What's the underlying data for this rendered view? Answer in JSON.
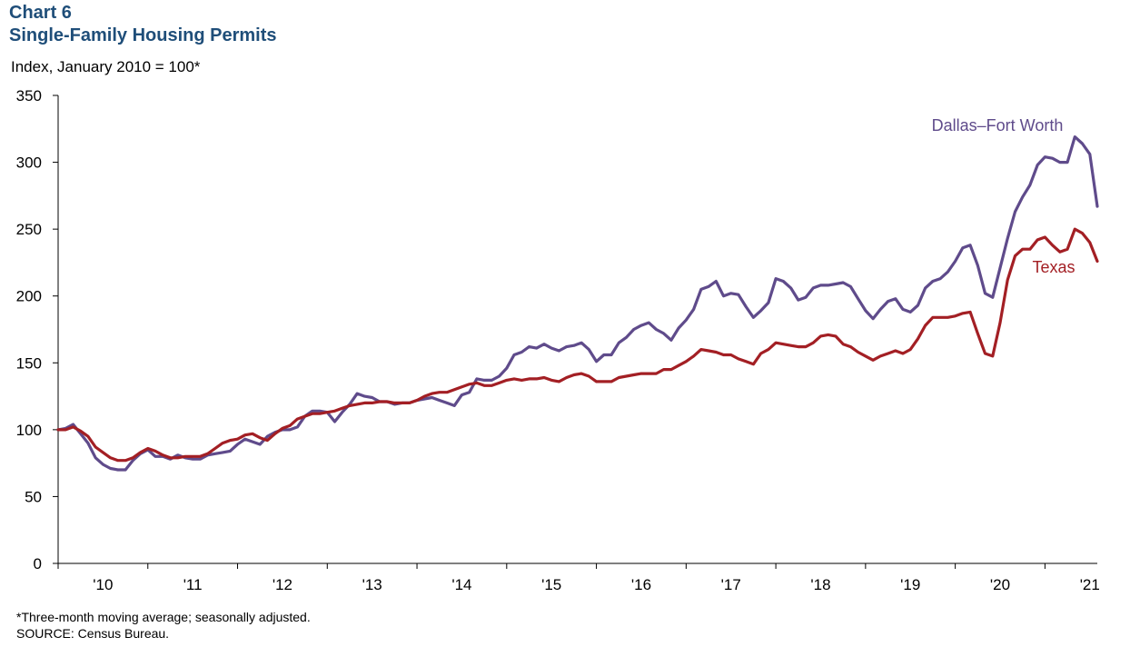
{
  "header": {
    "chart_number": "Chart 6",
    "title": "Single-Family Housing Permits",
    "ylabel": "Index, January 2010 = 100*"
  },
  "footnotes": {
    "note": "*Three-month moving average; seasonally adjusted.",
    "source": "SOURCE:  Census Bureau."
  },
  "colors": {
    "dfw": "#5f4b8b",
    "texas": "#a31f24",
    "axis": "#000000"
  },
  "chart_data": {
    "type": "line",
    "title": "Single-Family Housing Permits",
    "ylabel": "Index, January 2010 = 100*",
    "xlabel": "",
    "x_start": "2010-01",
    "x_end": "2021-07",
    "x_tick_labels": [
      "'10",
      "'11",
      "'12",
      "'13",
      "'14",
      "'15",
      "'16",
      "'17",
      "'18",
      "'19",
      "'20",
      "'21"
    ],
    "ylim": [
      0,
      350
    ],
    "y_ticks": [
      0,
      50,
      100,
      150,
      200,
      250,
      300,
      350
    ],
    "grid": false,
    "series": [
      {
        "name": "Dallas–Fort Worth",
        "color": "#5f4b8b",
        "points": [
          [
            "2010-01",
            100
          ],
          [
            "2010-02",
            101
          ],
          [
            "2010-03",
            104
          ],
          [
            "2010-04",
            97
          ],
          [
            "2010-05",
            90
          ],
          [
            "2010-06",
            79
          ],
          [
            "2010-07",
            74
          ],
          [
            "2010-08",
            71
          ],
          [
            "2010-09",
            70
          ],
          [
            "2010-10",
            70
          ],
          [
            "2010-11",
            77
          ],
          [
            "2010-12",
            82
          ],
          [
            "2011-01",
            85
          ],
          [
            "2011-02",
            80
          ],
          [
            "2011-03",
            80
          ],
          [
            "2011-04",
            78
          ],
          [
            "2011-05",
            81
          ],
          [
            "2011-06",
            79
          ],
          [
            "2011-07",
            78
          ],
          [
            "2011-08",
            78
          ],
          [
            "2011-09",
            81
          ],
          [
            "2011-10",
            82
          ],
          [
            "2011-11",
            83
          ],
          [
            "2011-12",
            84
          ],
          [
            "2012-01",
            89
          ],
          [
            "2012-02",
            93
          ],
          [
            "2012-03",
            91
          ],
          [
            "2012-04",
            89
          ],
          [
            "2012-05",
            95
          ],
          [
            "2012-06",
            98
          ],
          [
            "2012-07",
            100
          ],
          [
            "2012-08",
            100
          ],
          [
            "2012-09",
            102
          ],
          [
            "2012-10",
            110
          ],
          [
            "2012-11",
            114
          ],
          [
            "2012-12",
            114
          ],
          [
            "2013-01",
            113
          ],
          [
            "2013-02",
            106
          ],
          [
            "2013-03",
            113
          ],
          [
            "2013-04",
            119
          ],
          [
            "2013-05",
            127
          ],
          [
            "2013-06",
            125
          ],
          [
            "2013-07",
            124
          ],
          [
            "2013-08",
            121
          ],
          [
            "2013-09",
            121
          ],
          [
            "2013-10",
            119
          ],
          [
            "2013-11",
            120
          ],
          [
            "2013-12",
            120
          ],
          [
            "2014-01",
            122
          ],
          [
            "2014-02",
            123
          ],
          [
            "2014-03",
            124
          ],
          [
            "2014-04",
            122
          ],
          [
            "2014-05",
            120
          ],
          [
            "2014-06",
            118
          ],
          [
            "2014-07",
            126
          ],
          [
            "2014-08",
            128
          ],
          [
            "2014-09",
            138
          ],
          [
            "2014-10",
            137
          ],
          [
            "2014-11",
            137
          ],
          [
            "2014-12",
            140
          ],
          [
            "2015-01",
            146
          ],
          [
            "2015-02",
            156
          ],
          [
            "2015-03",
            158
          ],
          [
            "2015-04",
            162
          ],
          [
            "2015-05",
            161
          ],
          [
            "2015-06",
            164
          ],
          [
            "2015-07",
            161
          ],
          [
            "2015-08",
            159
          ],
          [
            "2015-09",
            162
          ],
          [
            "2015-10",
            163
          ],
          [
            "2015-11",
            165
          ],
          [
            "2015-12",
            160
          ],
          [
            "2016-01",
            151
          ],
          [
            "2016-02",
            156
          ],
          [
            "2016-03",
            156
          ],
          [
            "2016-04",
            165
          ],
          [
            "2016-05",
            169
          ],
          [
            "2016-06",
            175
          ],
          [
            "2016-07",
            178
          ],
          [
            "2016-08",
            180
          ],
          [
            "2016-09",
            175
          ],
          [
            "2016-10",
            172
          ],
          [
            "2016-11",
            167
          ],
          [
            "2016-12",
            176
          ],
          [
            "2017-01",
            182
          ],
          [
            "2017-02",
            190
          ],
          [
            "2017-03",
            205
          ],
          [
            "2017-04",
            207
          ],
          [
            "2017-05",
            211
          ],
          [
            "2017-06",
            200
          ],
          [
            "2017-07",
            202
          ],
          [
            "2017-08",
            201
          ],
          [
            "2017-09",
            192
          ],
          [
            "2017-10",
            184
          ],
          [
            "2017-11",
            189
          ],
          [
            "2017-12",
            195
          ],
          [
            "2018-01",
            213
          ],
          [
            "2018-02",
            211
          ],
          [
            "2018-03",
            206
          ],
          [
            "2018-04",
            197
          ],
          [
            "2018-05",
            199
          ],
          [
            "2018-06",
            206
          ],
          [
            "2018-07",
            208
          ],
          [
            "2018-08",
            208
          ],
          [
            "2018-09",
            209
          ],
          [
            "2018-10",
            210
          ],
          [
            "2018-11",
            207
          ],
          [
            "2018-12",
            198
          ],
          [
            "2019-01",
            189
          ],
          [
            "2019-02",
            183
          ],
          [
            "2019-03",
            190
          ],
          [
            "2019-04",
            196
          ],
          [
            "2019-05",
            198
          ],
          [
            "2019-06",
            190
          ],
          [
            "2019-07",
            188
          ],
          [
            "2019-08",
            193
          ],
          [
            "2019-09",
            206
          ],
          [
            "2019-10",
            211
          ],
          [
            "2019-11",
            213
          ],
          [
            "2019-12",
            218
          ],
          [
            "2020-01",
            226
          ],
          [
            "2020-02",
            236
          ],
          [
            "2020-03",
            238
          ],
          [
            "2020-04",
            223
          ],
          [
            "2020-05",
            202
          ],
          [
            "2020-06",
            199
          ],
          [
            "2020-07",
            221
          ],
          [
            "2020-08",
            243
          ],
          [
            "2020-09",
            263
          ],
          [
            "2020-10",
            274
          ],
          [
            "2020-11",
            283
          ],
          [
            "2020-12",
            298
          ],
          [
            "2021-01",
            304
          ],
          [
            "2021-02",
            303
          ],
          [
            "2021-03",
            300
          ],
          [
            "2021-04",
            300
          ],
          [
            "2021-05",
            319
          ],
          [
            "2021-06",
            314
          ],
          [
            "2021-07",
            306
          ],
          [
            "2021-08",
            267
          ]
        ]
      },
      {
        "name": "Texas",
        "color": "#a31f24",
        "points": [
          [
            "2010-01",
            100
          ],
          [
            "2010-02",
            100
          ],
          [
            "2010-03",
            102
          ],
          [
            "2010-04",
            99
          ],
          [
            "2010-05",
            95
          ],
          [
            "2010-06",
            87
          ],
          [
            "2010-07",
            83
          ],
          [
            "2010-08",
            79
          ],
          [
            "2010-09",
            77
          ],
          [
            "2010-10",
            77
          ],
          [
            "2010-11",
            79
          ],
          [
            "2010-12",
            83
          ],
          [
            "2011-01",
            86
          ],
          [
            "2011-02",
            84
          ],
          [
            "2011-03",
            81
          ],
          [
            "2011-04",
            79
          ],
          [
            "2011-05",
            79
          ],
          [
            "2011-06",
            80
          ],
          [
            "2011-07",
            80
          ],
          [
            "2011-08",
            80
          ],
          [
            "2011-09",
            82
          ],
          [
            "2011-10",
            86
          ],
          [
            "2011-11",
            90
          ],
          [
            "2011-12",
            92
          ],
          [
            "2012-01",
            93
          ],
          [
            "2012-02",
            96
          ],
          [
            "2012-03",
            97
          ],
          [
            "2012-04",
            94
          ],
          [
            "2012-05",
            92
          ],
          [
            "2012-06",
            97
          ],
          [
            "2012-07",
            101
          ],
          [
            "2012-08",
            103
          ],
          [
            "2012-09",
            108
          ],
          [
            "2012-10",
            110
          ],
          [
            "2012-11",
            112
          ],
          [
            "2012-12",
            112
          ],
          [
            "2013-01",
            113
          ],
          [
            "2013-02",
            114
          ],
          [
            "2013-03",
            116
          ],
          [
            "2013-04",
            118
          ],
          [
            "2013-05",
            119
          ],
          [
            "2013-06",
            120
          ],
          [
            "2013-07",
            120
          ],
          [
            "2013-08",
            121
          ],
          [
            "2013-09",
            121
          ],
          [
            "2013-10",
            120
          ],
          [
            "2013-11",
            120
          ],
          [
            "2013-12",
            120
          ],
          [
            "2014-01",
            122
          ],
          [
            "2014-02",
            125
          ],
          [
            "2014-03",
            127
          ],
          [
            "2014-04",
            128
          ],
          [
            "2014-05",
            128
          ],
          [
            "2014-06",
            130
          ],
          [
            "2014-07",
            132
          ],
          [
            "2014-08",
            134
          ],
          [
            "2014-09",
            135
          ],
          [
            "2014-10",
            133
          ],
          [
            "2014-11",
            133
          ],
          [
            "2014-12",
            135
          ],
          [
            "2015-01",
            137
          ],
          [
            "2015-02",
            138
          ],
          [
            "2015-03",
            137
          ],
          [
            "2015-04",
            138
          ],
          [
            "2015-05",
            138
          ],
          [
            "2015-06",
            139
          ],
          [
            "2015-07",
            137
          ],
          [
            "2015-08",
            136
          ],
          [
            "2015-09",
            139
          ],
          [
            "2015-10",
            141
          ],
          [
            "2015-11",
            142
          ],
          [
            "2015-12",
            140
          ],
          [
            "2016-01",
            136
          ],
          [
            "2016-02",
            136
          ],
          [
            "2016-03",
            136
          ],
          [
            "2016-04",
            139
          ],
          [
            "2016-05",
            140
          ],
          [
            "2016-06",
            141
          ],
          [
            "2016-07",
            142
          ],
          [
            "2016-08",
            142
          ],
          [
            "2016-09",
            142
          ],
          [
            "2016-10",
            145
          ],
          [
            "2016-11",
            145
          ],
          [
            "2016-12",
            148
          ],
          [
            "2017-01",
            151
          ],
          [
            "2017-02",
            155
          ],
          [
            "2017-03",
            160
          ],
          [
            "2017-04",
            159
          ],
          [
            "2017-05",
            158
          ],
          [
            "2017-06",
            156
          ],
          [
            "2017-07",
            156
          ],
          [
            "2017-08",
            153
          ],
          [
            "2017-09",
            151
          ],
          [
            "2017-10",
            149
          ],
          [
            "2017-11",
            157
          ],
          [
            "2017-12",
            160
          ],
          [
            "2018-01",
            165
          ],
          [
            "2018-02",
            164
          ],
          [
            "2018-03",
            163
          ],
          [
            "2018-04",
            162
          ],
          [
            "2018-05",
            162
          ],
          [
            "2018-06",
            165
          ],
          [
            "2018-07",
            170
          ],
          [
            "2018-08",
            171
          ],
          [
            "2018-09",
            170
          ],
          [
            "2018-10",
            164
          ],
          [
            "2018-11",
            162
          ],
          [
            "2018-12",
            158
          ],
          [
            "2019-01",
            155
          ],
          [
            "2019-02",
            152
          ],
          [
            "2019-03",
            155
          ],
          [
            "2019-04",
            157
          ],
          [
            "2019-05",
            159
          ],
          [
            "2019-06",
            157
          ],
          [
            "2019-07",
            160
          ],
          [
            "2019-08",
            168
          ],
          [
            "2019-09",
            178
          ],
          [
            "2019-10",
            184
          ],
          [
            "2019-11",
            184
          ],
          [
            "2019-12",
            184
          ],
          [
            "2020-01",
            185
          ],
          [
            "2020-02",
            187
          ],
          [
            "2020-03",
            188
          ],
          [
            "2020-04",
            172
          ],
          [
            "2020-05",
            157
          ],
          [
            "2020-06",
            155
          ],
          [
            "2020-07",
            180
          ],
          [
            "2020-08",
            212
          ],
          [
            "2020-09",
            230
          ],
          [
            "2020-10",
            235
          ],
          [
            "2020-11",
            235
          ],
          [
            "2020-12",
            242
          ],
          [
            "2021-01",
            244
          ],
          [
            "2021-02",
            238
          ],
          [
            "2021-03",
            233
          ],
          [
            "2021-04",
            235
          ],
          [
            "2021-05",
            250
          ],
          [
            "2021-06",
            247
          ],
          [
            "2021-07",
            240
          ],
          [
            "2021-08",
            226
          ]
        ]
      }
    ]
  }
}
